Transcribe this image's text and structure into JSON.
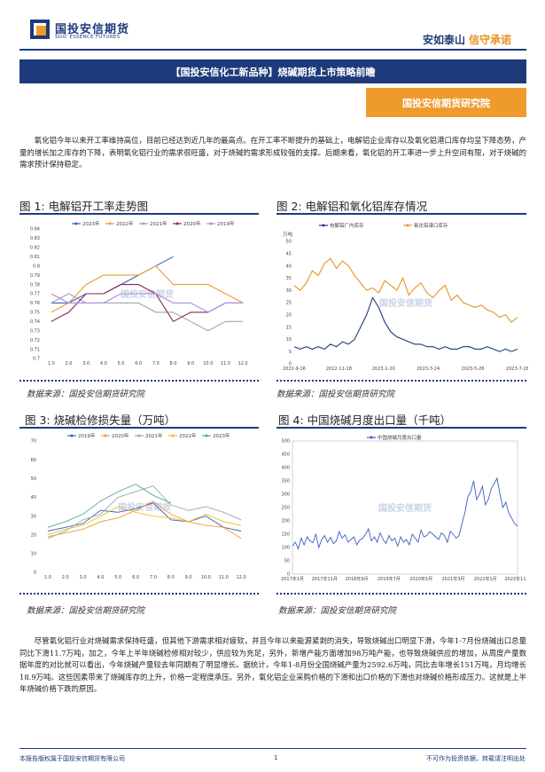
{
  "header": {
    "logo_cn": "国投安信期货",
    "logo_en": "SDIC ESSENCE FUTURES",
    "slogan_a": "安如泰山",
    "slogan_b": "信守承诺",
    "brand_color": "#1d3b7a",
    "accent_color": "#ee9a2d"
  },
  "title": "【国投安信化工新品种】烧碱期货上市策略前瞻",
  "institute": "国投安信期货研究院",
  "para1": "氧化铝今年以来开工率维持高位，目前已经达到近几年的最高点。在开工率不断提升的基础上，电解铝企业库存以及氧化铝港口库存均呈下降态势，产量的增长加之库存的下降，表明氧化铝行业的需求很旺盛，对于烧碱的需求形成较强的支撑。后期来看，氧化铝的开工率进一步上升空间有限，对于烧碱的需求预计保持稳定。",
  "para2": "尽管氧化铝行业对烧碱需求保持旺盛，但其他下游需求相对疲软，并且今年以来能源紧剥的消失，导致烧碱出口明显下滑，今年1-7月份烧碱出口总量同比下滑11.7万吨，加之，今年上半年烧碱检修相对较少，供应较为充足，另外，新增产能方面增加98万吨产能，也导致烧碱供应的增加，从周度产量数据年度的对比就可以看出，今年烧碱产量较去年同期有了明显增长。据统计，今年1-8月份全国烧碱产量为2592.6万吨，同比去年增长151万吨，月均增长18.9万吨。这些因素带来了烧碱库存的上升，价格一定程度承压。另外，氧化铝企业采购价格的下滑和出口价格的下滑也对烧碱价格形成压力。这就是上半年烧碱价格下跌的原因。",
  "figures": [
    {
      "title": "图 1:  电解铝开工率走势图",
      "source": "数据来源：国投安信期货研究院"
    },
    {
      "title": "图 2:  电解铝和氧化铝库存情况",
      "source": "数据来源：国投安信期货研究院"
    },
    {
      "title": "图 3:  烧碱检修损失量（万吨）",
      "source": "数据来源：国投安信期货研究院"
    },
    {
      "title": "图 4:  中国烧碱月度出口量（千吨）",
      "source": "数据来源：国投安信期货研究院"
    }
  ],
  "watermark": "国投安信期货",
  "footer": {
    "left": "本报告版权属于国投安信期货有限公司",
    "page": "1",
    "right": "不可作为投资依据，转载请注明出处"
  },
  "chart_data": [
    {
      "type": "line",
      "title": "图 1:  电解铝开工率走势图",
      "categories": [
        "1.0",
        "2.0",
        "3.0",
        "4.0",
        "5.0",
        "6.0",
        "7.0",
        "8.0",
        "9.0",
        "10.0",
        "11.0",
        "12.0"
      ],
      "y_ticks": [
        "0.84",
        "0.83",
        "0.82",
        "0.81",
        "0.8",
        "0.79",
        "0.78",
        "0.77",
        "0.76",
        "0.75",
        "0.74",
        "0.73",
        "0.72",
        "0.71",
        "0.7"
      ],
      "ylim": [
        0.7,
        0.84
      ],
      "series": [
        {
          "name": "2023年",
          "color": "#3b5fc4",
          "values": [
            0.76,
            0.76,
            0.77,
            0.77,
            0.78,
            0.79,
            0.8,
            0.81,
            null,
            null,
            null,
            null
          ]
        },
        {
          "name": "2022年",
          "color": "#ef9b2f",
          "values": [
            0.75,
            0.76,
            0.78,
            0.79,
            0.79,
            0.79,
            0.8,
            0.78,
            0.78,
            0.78,
            0.77,
            0.76
          ]
        },
        {
          "name": "2021年",
          "color": "#9aa6b5",
          "values": [
            0.76,
            0.77,
            0.76,
            0.76,
            0.76,
            0.76,
            0.75,
            0.75,
            0.74,
            0.73,
            0.74,
            0.74
          ]
        },
        {
          "name": "2020年",
          "color": "#8b2450",
          "values": [
            0.74,
            0.75,
            0.77,
            0.77,
            0.78,
            0.78,
            0.77,
            0.74,
            0.75,
            0.75,
            0.76,
            0.76
          ]
        },
        {
          "name": "2019年",
          "color": "#a98ed8",
          "values": [
            0.77,
            0.76,
            0.76,
            0.76,
            0.77,
            0.77,
            0.77,
            0.76,
            0.76,
            0.75,
            0.76,
            0.76
          ]
        }
      ]
    },
    {
      "type": "line",
      "title": "图 2:  电解铝和氧化铝库存情况",
      "ylabel": "万吨",
      "x_ticks": [
        "2022-9-16",
        "2022-11-18",
        "2023-1-20",
        "2023-3-24",
        "2023-5-26",
        "2023-7-28"
      ],
      "y_ticks": [
        "50",
        "45",
        "40",
        "35",
        "30",
        "25",
        "20",
        "15",
        "10",
        "5",
        "0"
      ],
      "ylim": [
        0,
        50
      ],
      "series": [
        {
          "name": "电解铝厂内库存",
          "color": "#1d3b7a",
          "values": [
            7,
            6,
            7,
            6,
            7,
            6,
            8,
            7,
            9,
            8,
            10,
            15,
            20,
            27,
            23,
            17,
            13,
            11,
            10,
            9,
            8,
            8,
            7,
            7,
            6,
            7,
            6,
            6,
            7,
            7,
            6,
            6,
            7,
            6,
            5,
            6,
            5,
            6
          ]
        },
        {
          "name": "氧化铝港口库存",
          "color": "#e8931d",
          "values": [
            32,
            30,
            33,
            38,
            36,
            41,
            43,
            39,
            42,
            40,
            36,
            33,
            30,
            31,
            29,
            34,
            32,
            30,
            35,
            28,
            31,
            33,
            29,
            27,
            30,
            32,
            26,
            28,
            25,
            24,
            23,
            24,
            22,
            21,
            19,
            20,
            17,
            19
          ]
        }
      ]
    },
    {
      "type": "line",
      "title": "图 3:  烧碱检修损失量（万吨）",
      "categories": [
        "1.0",
        "2.0",
        "3.0",
        "4.0",
        "5.0",
        "6.0",
        "7.0",
        "8.0",
        "9.0",
        "10.0",
        "11.0",
        "12.0"
      ],
      "y_ticks": [
        "70",
        "60",
        "50",
        "40",
        "30",
        "20",
        "10",
        "0"
      ],
      "ylim": [
        0,
        70
      ],
      "series": [
        {
          "name": "2019年",
          "color": "#3b5fc4",
          "values": [
            22,
            24,
            26,
            33,
            32,
            34,
            37,
            28,
            27,
            30,
            24,
            22
          ]
        },
        {
          "name": "2020年",
          "color": "#ef9b2f",
          "values": [
            19,
            21,
            23,
            27,
            29,
            33,
            38,
            31,
            27,
            25,
            24,
            18
          ]
        },
        {
          "name": "2021年",
          "color": "#9aa6b5",
          "values": [
            18,
            22,
            28,
            31,
            40,
            43,
            46,
            36,
            33,
            35,
            32,
            28
          ]
        },
        {
          "name": "2022年",
          "color": "#e8c21d",
          "values": [
            20,
            23,
            25,
            30,
            35,
            32,
            30,
            29,
            27,
            31,
            27,
            25
          ]
        },
        {
          "name": "2023年",
          "color": "#5aa39a",
          "values": [
            24,
            27,
            31,
            38,
            43,
            47,
            41,
            37,
            null,
            null,
            null,
            null
          ]
        }
      ]
    },
    {
      "type": "line",
      "title": "图 4:  中国烧碱月度出口量（千吨）",
      "x_ticks": [
        "2017年1月",
        "2017年11月",
        "2018年9月",
        "2019年7月",
        "2020年5月",
        "2021年3月",
        "2022年1月",
        "2022年11月"
      ],
      "y_ticks": [
        "500",
        "450",
        "400",
        "350",
        "300",
        "250",
        "200",
        "150",
        "100",
        "50",
        "0"
      ],
      "ylim": [
        0,
        500
      ],
      "series": [
        {
          "name": "中国烧碱月度出口量",
          "color": "#3b5fc4",
          "values": [
            105,
            120,
            95,
            135,
            110,
            140,
            125,
            118,
            150,
            100,
            130,
            145,
            120,
            138,
            115,
            125,
            160,
            135,
            148,
            120,
            130,
            140,
            110,
            128,
            135,
            150,
            170,
            125,
            140,
            120,
            155,
            130,
            115,
            145,
            125,
            135,
            105,
            140,
            120,
            130,
            110,
            150,
            135,
            120,
            165,
            140,
            145,
            160,
            150,
            140,
            130,
            155,
            145,
            120,
            160,
            150,
            135,
            145,
            190,
            230,
            290,
            310,
            350,
            280,
            300,
            330,
            260,
            280,
            320,
            340,
            360,
            300,
            250,
            270,
            230,
            210,
            190,
            180
          ]
        }
      ]
    }
  ]
}
